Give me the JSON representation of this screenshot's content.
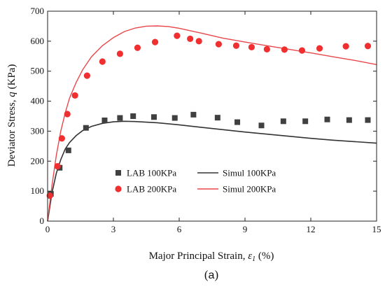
{
  "chart_data": {
    "type": "scatter",
    "xlabel_prefix": "Major Principal Strain, ",
    "xlabel_symbol": "ε",
    "xlabel_subscript": "1",
    "xlabel_suffix": " (%)",
    "ylabel_prefix": "Deviator Stress, ",
    "ylabel_symbol": "q",
    "ylabel_suffix": " (KPa)",
    "xlim": [
      0,
      15
    ],
    "ylim": [
      0,
      700
    ],
    "xticks": [
      0,
      3,
      6,
      9,
      12,
      15
    ],
    "yticks": [
      0,
      100,
      200,
      300,
      400,
      500,
      600,
      700
    ],
    "grid": false,
    "legend_position": "lower-center",
    "caption_open": "(",
    "caption_letter": "a",
    "caption_close": ")",
    "series": [
      {
        "name": "LAB 100KPa",
        "kind": "points",
        "marker": "square",
        "color": "#404040",
        "x": [
          0.15,
          0.55,
          0.95,
          1.75,
          2.6,
          3.3,
          3.9,
          4.85,
          5.8,
          6.65,
          7.75,
          8.65,
          9.75,
          10.75,
          11.75,
          12.75,
          13.75,
          14.6
        ],
        "y": [
          91,
          178,
          236,
          311,
          336,
          344,
          350,
          347,
          344,
          355,
          345,
          330,
          319,
          333,
          333,
          339,
          337,
          337
        ]
      },
      {
        "name": "Simul 100KPa",
        "kind": "line",
        "color": "#333333",
        "x": [
          0,
          0.2,
          0.4,
          0.6,
          0.8,
          1.0,
          1.3,
          1.6,
          2.0,
          2.5,
          3.0,
          3.5,
          4.0,
          5.0,
          6.0,
          7.0,
          8.0,
          9.0,
          10.0,
          11.0,
          12.0,
          13.0,
          14.0,
          15.0
        ],
        "y": [
          0,
          95,
          160,
          205,
          240,
          262,
          285,
          302,
          316,
          326,
          331,
          333,
          332,
          328,
          321,
          313,
          305,
          297,
          290,
          283,
          276,
          270,
          265,
          260
        ]
      },
      {
        "name": "LAB 200KPa",
        "kind": "points",
        "marker": "circle",
        "color": "#f03030",
        "x": [
          0.1,
          0.45,
          0.65,
          0.9,
          1.25,
          1.8,
          2.5,
          3.3,
          4.1,
          4.9,
          5.9,
          6.5,
          6.9,
          7.8,
          8.6,
          9.3,
          10.0,
          10.8,
          11.6,
          12.4,
          13.6,
          14.6
        ],
        "y": [
          85,
          183,
          276,
          357,
          419,
          485,
          532,
          558,
          578,
          597,
          618,
          608,
          600,
          590,
          585,
          580,
          573,
          572,
          569,
          576,
          583,
          584
        ]
      },
      {
        "name": "Simul 200KPa",
        "kind": "line",
        "color": "#e8474b",
        "x": [
          0,
          0.2,
          0.4,
          0.6,
          0.8,
          1.0,
          1.3,
          1.6,
          2.0,
          2.5,
          3.0,
          3.5,
          4.0,
          4.5,
          5.0,
          5.5,
          6.0,
          7.0,
          8.0,
          9.0,
          10.0,
          11.0,
          12.0,
          13.0,
          14.0,
          15.0
        ],
        "y": [
          0,
          120,
          220,
          300,
          360,
          410,
          462,
          505,
          548,
          585,
          612,
          632,
          644,
          650,
          651,
          649,
          643,
          627,
          610,
          597,
          585,
          573,
          561,
          548,
          536,
          522
        ]
      }
    ]
  }
}
